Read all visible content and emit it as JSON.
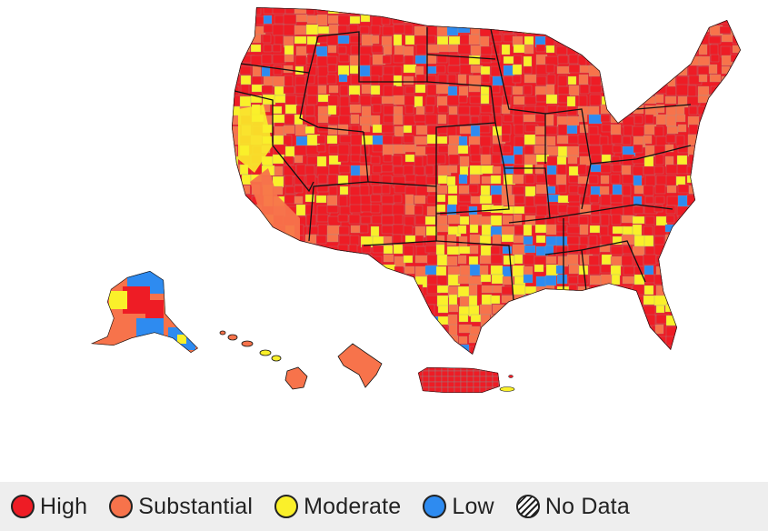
{
  "map": {
    "levels": [
      {
        "key": "high",
        "label": "High",
        "color": "#ee1c25"
      },
      {
        "key": "substantial",
        "label": "Substantial",
        "color": "#f7734b"
      },
      {
        "key": "moderate",
        "label": "Moderate",
        "color": "#faf02a"
      },
      {
        "key": "low",
        "label": "Low",
        "color": "#2e8bf0"
      },
      {
        "key": "nodata",
        "label": "No Data",
        "color": "hatched"
      }
    ],
    "boundary_color": "#111111",
    "county_line_color": "#999999"
  }
}
